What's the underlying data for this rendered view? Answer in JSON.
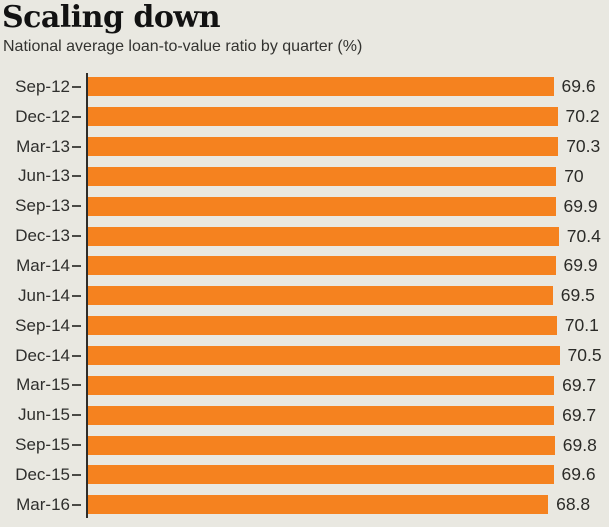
{
  "header": {
    "title": "Scaling down",
    "subtitle": "National average loan-to-value ratio by quarter (%)"
  },
  "colors": {
    "background": "#e9e8e1",
    "bar": "#f5821f",
    "axis": "#2e2d2a",
    "title_text": "#121212",
    "label_text": "#2f2f2d"
  },
  "chart_data": {
    "type": "bar",
    "orientation": "horizontal",
    "title": "Scaling down",
    "subtitle": "National average loan-to-value ratio by quarter (%)",
    "categories": [
      "Sep-12",
      "Dec-12",
      "Mar-13",
      "Jun-13",
      "Sep-13",
      "Dec-13",
      "Mar-14",
      "Jun-14",
      "Sep-14",
      "Dec-14",
      "Mar-15",
      "Jun-15",
      "Sep-15",
      "Dec-15",
      "Mar-16"
    ],
    "values": [
      69.6,
      70.2,
      70.3,
      70,
      69.9,
      70.4,
      69.9,
      69.5,
      70.1,
      70.5,
      69.7,
      69.7,
      69.8,
      69.6,
      68.8
    ],
    "xlabel": "",
    "ylabel": "",
    "xlim": [
      0,
      70.5
    ],
    "value_labels_shown": true,
    "grid": false,
    "legend": false
  }
}
